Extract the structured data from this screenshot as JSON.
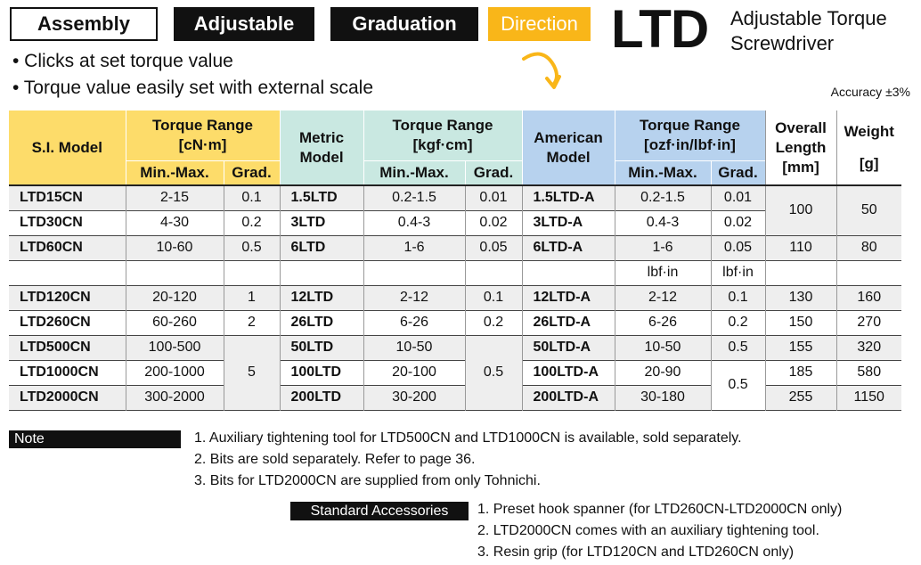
{
  "tags": {
    "assembly": "Assembly",
    "adjustable": "Adjustable",
    "graduation": "Graduation",
    "direction": "Direction"
  },
  "product": {
    "code": "LTD",
    "subtitle_line1": "Adjustable Torque",
    "subtitle_line2": "Screwdriver"
  },
  "features": [
    "• Clicks at set torque value",
    "• Torque value easily set with external scale"
  ],
  "accuracy": "Accuracy ±3%",
  "table": {
    "header": {
      "si_model": "S.I. Model",
      "si_range": "Torque Range",
      "si_unit": "[cN·m]",
      "metric_model_1": "Metric",
      "metric_model_2": "Model",
      "metric_range": "Torque Range",
      "metric_unit": "[kgf·cm]",
      "american_model_1": "American",
      "american_model_2": "Model",
      "american_range": "Torque Range",
      "american_unit": "[ozf·in/lbf·in]",
      "length_1": "Overall",
      "length_2": "Length",
      "length_unit": "[mm]",
      "weight": "Weight",
      "weight_unit": "[g]",
      "min_max": "Min.-Max.",
      "grad": "Grad."
    },
    "rows": [
      [
        "LTD15CN",
        "2-15",
        "0.1",
        "1.5LTD",
        "0.2-1.5",
        "0.01",
        "1.5LTD-A",
        "0.2-1.5",
        "0.01"
      ],
      [
        "LTD30CN",
        "4-30",
        "0.2",
        "3LTD",
        "0.4-3",
        "0.02",
        "3LTD-A",
        "0.4-3",
        "0.02"
      ],
      [
        "LTD60CN",
        "10-60",
        "0.5",
        "6LTD",
        "1-6",
        "0.05",
        "6LTD-A",
        "1-6",
        "0.05"
      ],
      [
        "LTD120CN",
        "20-120",
        "1",
        "12LTD",
        "2-12",
        "0.1",
        "12LTD-A",
        "2-12",
        "0.1"
      ],
      [
        "LTD260CN",
        "60-260",
        "2",
        "26LTD",
        "6-26",
        "0.2",
        "26LTD-A",
        "6-26",
        "0.2"
      ],
      [
        "LTD500CN",
        "100-500",
        "",
        "50LTD",
        "10-50",
        "",
        "50LTD-A",
        "10-50",
        "0.5"
      ],
      [
        "LTD1000CN",
        "200-1000",
        "5",
        "100LTD",
        "20-100",
        "0.5",
        "100LTD-A",
        "20-90",
        ""
      ],
      [
        "LTD2000CN",
        "300-2000",
        "",
        "200LTD",
        "30-200",
        "",
        "200LTD-A",
        "30-180",
        "0.5"
      ]
    ],
    "lbf_unit": "lbf·in",
    "length": {
      "r12": "100",
      "r3": "110",
      "r4": "130",
      "r5": "150",
      "r6": "155",
      "r7": "185",
      "r8": "255"
    },
    "weight": {
      "r12": "50",
      "r3": "80",
      "r4": "160",
      "r5": "270",
      "r6": "320",
      "r7": "580",
      "r8": "1150"
    }
  },
  "note": {
    "label": "Note",
    "items": [
      "1. Auxiliary tightening tool for LTD500CN and LTD1000CN is available, sold separately.",
      "2. Bits are sold separately. Refer to page 36.",
      "3. Bits for LTD2000CN are supplied from only Tohnichi."
    ]
  },
  "accessories": {
    "label": "Standard Accessories",
    "items": [
      "1. Preset hook spanner (for LTD260CN-LTD2000CN only)",
      "2. LTD2000CN comes with an auxiliary tightening tool.",
      "3. Resin grip (for LTD120CN and LTD260CN only)"
    ]
  }
}
